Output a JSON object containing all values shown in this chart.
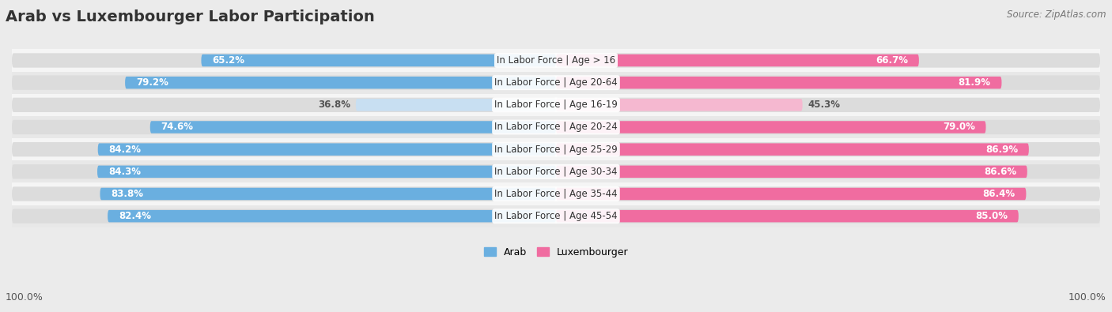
{
  "title": "Arab vs Luxembourger Labor Participation",
  "source": "Source: ZipAtlas.com",
  "categories": [
    "In Labor Force | Age > 16",
    "In Labor Force | Age 20-64",
    "In Labor Force | Age 16-19",
    "In Labor Force | Age 20-24",
    "In Labor Force | Age 25-29",
    "In Labor Force | Age 30-34",
    "In Labor Force | Age 35-44",
    "In Labor Force | Age 45-54"
  ],
  "arab_values": [
    65.2,
    79.2,
    36.8,
    74.6,
    84.2,
    84.3,
    83.8,
    82.4
  ],
  "lux_values": [
    66.7,
    81.9,
    45.3,
    79.0,
    86.9,
    86.6,
    86.4,
    85.0
  ],
  "arab_color_dark": "#6AAFE0",
  "arab_color_light": "#C8DFF2",
  "lux_color_dark": "#F06CA0",
  "lux_color_light": "#F5B8D0",
  "bg_color": "#EBEBEB",
  "row_bg_even": "#F5F5F5",
  "row_bg_odd": "#E8E8E8",
  "bar_track_color": "#DCDCDC",
  "max_val": 100.0,
  "legend_arab": "Arab",
  "legend_lux": "Luxembourger",
  "title_fontsize": 14,
  "label_fontsize": 9,
  "value_fontsize": 8.5,
  "source_fontsize": 8.5,
  "cat_fontsize": 8.5
}
